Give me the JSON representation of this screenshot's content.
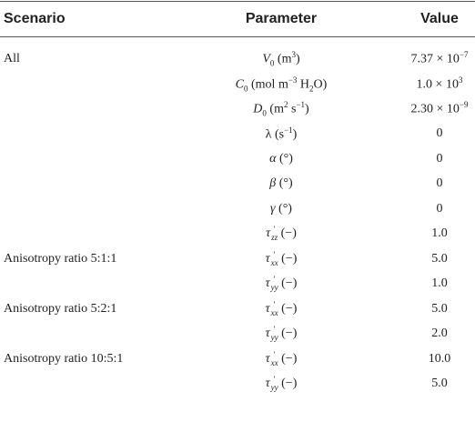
{
  "table": {
    "headers": [
      "Scenario",
      "Parameter",
      "Value"
    ],
    "rows": [
      {
        "scenario": "All",
        "parameter": [
          {
            "var": "V"
          },
          {
            "sub": "0"
          },
          {
            "text": " (m"
          },
          {
            "sup": "3"
          },
          {
            "text": ")"
          }
        ],
        "value": [
          {
            "text": "7.37 × 10"
          },
          {
            "sup": "−7"
          }
        ]
      },
      {
        "parameter": [
          {
            "var": "C"
          },
          {
            "sub": "0"
          },
          {
            "text": " (mol m"
          },
          {
            "sup": "−3"
          },
          {
            "text": " H"
          },
          {
            "sub": "2"
          },
          {
            "text": "O)"
          }
        ],
        "value": [
          {
            "text": "1.0 × 10"
          },
          {
            "sup": "3"
          }
        ]
      },
      {
        "parameter": [
          {
            "var": "D"
          },
          {
            "sub": "0"
          },
          {
            "text": " (m"
          },
          {
            "sup": "2"
          },
          {
            "text": " s"
          },
          {
            "sup": "−1"
          },
          {
            "text": ")"
          }
        ],
        "value": [
          {
            "text": "2.30 × 10"
          },
          {
            "sup": "−9"
          }
        ]
      },
      {
        "parameter": [
          {
            "text": "λ (s"
          },
          {
            "sup": "−1"
          },
          {
            "text": ")"
          }
        ],
        "value": [
          {
            "text": "0"
          }
        ]
      },
      {
        "parameter": [
          {
            "var": "α"
          },
          {
            "text": " (°)"
          }
        ],
        "value": [
          {
            "text": "0"
          }
        ]
      },
      {
        "parameter": [
          {
            "var": "β"
          },
          {
            "text": " (°)"
          }
        ],
        "value": [
          {
            "text": "0"
          }
        ]
      },
      {
        "parameter": [
          {
            "var": "γ"
          },
          {
            "text": " (°)"
          }
        ],
        "value": [
          {
            "text": "0"
          }
        ]
      },
      {
        "parameter": [
          {
            "var": "τ"
          },
          {
            "sup": "′",
            "sub": "zz"
          },
          {
            "text": " (−)"
          }
        ],
        "value": [
          {
            "text": "1.0"
          }
        ]
      },
      {
        "scenario": "Anisotropy ratio 5:1:1",
        "parameter": [
          {
            "var": "τ"
          },
          {
            "sup": "′",
            "sub": "xx"
          },
          {
            "text": " (−)"
          }
        ],
        "value": [
          {
            "text": "5.0"
          }
        ]
      },
      {
        "parameter": [
          {
            "var": "τ"
          },
          {
            "sup": "′",
            "sub": "yy"
          },
          {
            "text": " (−)"
          }
        ],
        "value": [
          {
            "text": "1.0"
          }
        ]
      },
      {
        "scenario": "Anisotropy ratio 5:2:1",
        "parameter": [
          {
            "var": "τ"
          },
          {
            "sup": "′",
            "sub": "xx"
          },
          {
            "text": " (−)"
          }
        ],
        "value": [
          {
            "text": "5.0"
          }
        ]
      },
      {
        "parameter": [
          {
            "var": "τ"
          },
          {
            "sup": "′",
            "sub": "yy"
          },
          {
            "text": " (−)"
          }
        ],
        "value": [
          {
            "text": "2.0"
          }
        ]
      },
      {
        "scenario": "Anisotropy ratio 10:5:1",
        "parameter": [
          {
            "var": "τ"
          },
          {
            "sup": "′",
            "sub": "xx"
          },
          {
            "text": " (−)"
          }
        ],
        "value": [
          {
            "text": "10.0"
          }
        ]
      },
      {
        "parameter": [
          {
            "var": "τ"
          },
          {
            "sup": "′",
            "sub": "yy"
          },
          {
            "text": " (−)"
          }
        ],
        "value": [
          {
            "text": "5.0"
          }
        ]
      }
    ]
  }
}
